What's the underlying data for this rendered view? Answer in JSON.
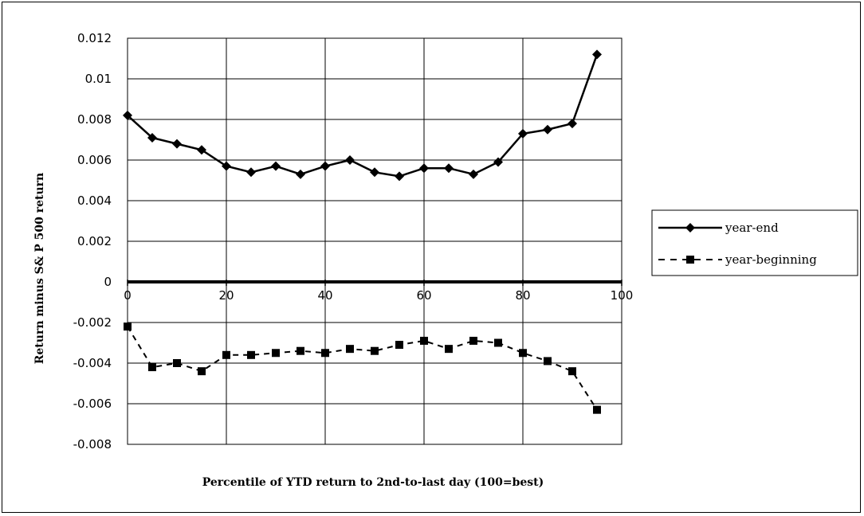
{
  "chart_data": {
    "type": "line",
    "title": "",
    "xlabel": "Percentile of YTD return to 2nd-to-last day (100=best)",
    "ylabel": "Return minus S& P 500 return",
    "xlim": [
      0,
      100
    ],
    "ylim": [
      -0.008,
      0.012
    ],
    "x_ticks": [
      0,
      20,
      40,
      60,
      80,
      100
    ],
    "y_ticks": [
      0.012,
      0.01,
      0.008,
      0.006,
      0.004,
      0.002,
      0,
      -0.002,
      -0.004,
      -0.006,
      -0.008
    ],
    "x_tick_labels": [
      "0",
      "20",
      "40",
      "60",
      "80",
      "100"
    ],
    "y_tick_labels": [
      "0.012",
      "0.01",
      "0.008",
      "0.006",
      "0.004",
      "0.002",
      "0",
      "-0.002",
      "-0.004",
      "-0.006",
      "-0.008"
    ],
    "grid": true,
    "legend_position": "right",
    "x": [
      0,
      5,
      10,
      15,
      20,
      25,
      30,
      35,
      40,
      45,
      50,
      55,
      60,
      65,
      70,
      75,
      80,
      85,
      90,
      95
    ],
    "series": [
      {
        "name": "year-end",
        "line_style": "solid",
        "marker": "diamond",
        "color": "#000000",
        "values": [
          0.0082,
          0.0071,
          0.0068,
          0.0065,
          0.0057,
          0.0054,
          0.0057,
          0.0053,
          0.0057,
          0.006,
          0.0054,
          0.0052,
          0.0056,
          0.0056,
          0.0053,
          0.0059,
          0.0073,
          0.0075,
          0.0078,
          0.0112
        ]
      },
      {
        "name": "year-beginning",
        "line_style": "dashed",
        "marker": "square",
        "color": "#000000",
        "values": [
          -0.0022,
          -0.0042,
          -0.004,
          -0.0044,
          -0.0036,
          -0.0036,
          -0.0035,
          -0.0034,
          -0.0035,
          -0.0033,
          -0.0034,
          -0.0031,
          -0.0029,
          -0.0033,
          -0.0029,
          -0.003,
          -0.0035,
          -0.0039,
          -0.0044,
          -0.0063
        ]
      }
    ]
  }
}
